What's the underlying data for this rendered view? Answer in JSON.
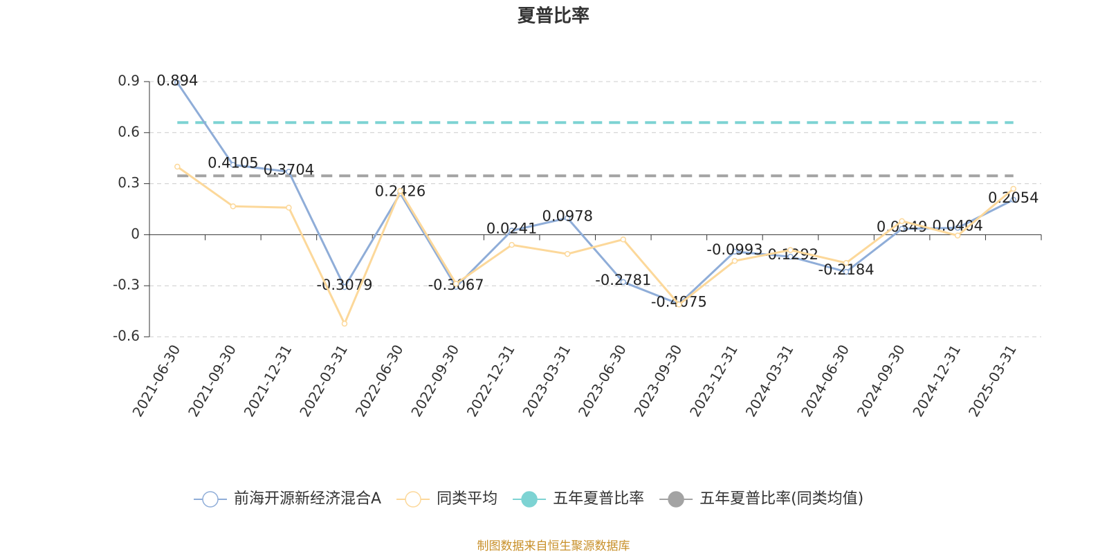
{
  "chart_data": {
    "type": "line",
    "title": "夏普比率",
    "categories": [
      "2021-06-30",
      "2021-09-30",
      "2021-12-31",
      "2022-03-31",
      "2022-06-30",
      "2022-09-30",
      "2022-12-31",
      "2023-03-31",
      "2023-06-30",
      "2023-09-30",
      "2023-12-31",
      "2024-03-31",
      "2024-06-30",
      "2024-09-30",
      "2024-12-31",
      "2025-03-31"
    ],
    "series": [
      {
        "name": "前海开源新经济混合A",
        "color": "#8fadd8",
        "values": [
          0.894,
          0.4105,
          0.3704,
          -0.3079,
          0.2426,
          -0.3067,
          0.0241,
          0.0978,
          -0.2781,
          -0.4075,
          -0.0993,
          -0.1292,
          -0.2184,
          0.0349,
          0.0404,
          0.2054
        ],
        "show_labels": true
      },
      {
        "name": "同类平均",
        "color": "#fcd89a",
        "values": [
          0.4,
          0.167,
          0.159,
          -0.523,
          0.257,
          -0.288,
          -0.06,
          -0.113,
          -0.028,
          -0.41,
          -0.154,
          -0.09,
          -0.166,
          0.08,
          -0.005,
          0.27
        ],
        "show_labels": false
      }
    ],
    "reference_lines": [
      {
        "name": "五年夏普比率",
        "color": "#7dd3d3",
        "value": 0.659
      },
      {
        "name": "五年夏普比率(同类均值)",
        "color": "#a3a3a3",
        "value": 0.346
      }
    ],
    "ylim": [
      -0.6,
      0.9
    ],
    "yticks": [
      -0.6,
      -0.3,
      0,
      0.3,
      0.6,
      0.9
    ],
    "grid": true,
    "source": "制图数据来自恒生聚源数据库"
  }
}
